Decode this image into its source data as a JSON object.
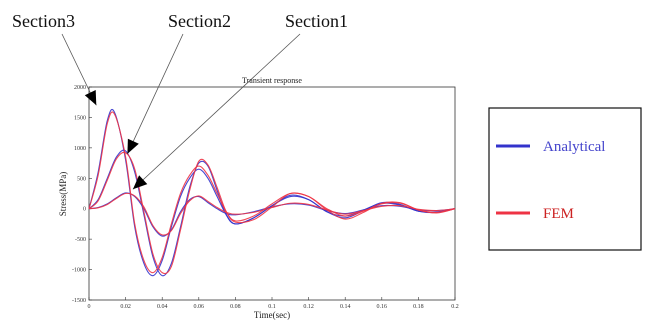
{
  "colors": {
    "analytical": "#3333cc",
    "fem": "#ee3344",
    "axis": "#333333",
    "legend_text_analytical": "#4444cc",
    "legend_text_fem": "#cc2222"
  },
  "annotations": [
    {
      "label": "Section3",
      "target": {
        "x": 0.004,
        "y": 1700
      }
    },
    {
      "label": "Section2",
      "target": {
        "x": 0.021,
        "y": 900
      }
    },
    {
      "label": "Section1",
      "target": {
        "x": 0.024,
        "y": 320
      }
    }
  ],
  "legend": {
    "items": [
      {
        "label": "Analytical",
        "color": "#3333cc"
      },
      {
        "label": "FEM",
        "color": "#ee3344"
      }
    ]
  },
  "chart_data": {
    "type": "line",
    "title": "Transient response",
    "xlabel": "Time(sec)",
    "ylabel": "Stress(MPa)",
    "xlim": [
      0,
      0.2
    ],
    "ylim": [
      -1500,
      2000
    ],
    "xticks": [
      0,
      0.02,
      0.04,
      0.06,
      0.08,
      0.1,
      0.12,
      0.14,
      0.16,
      0.18,
      0.2
    ],
    "yticks": [
      -1500,
      -1000,
      -500,
      0,
      500,
      1000,
      1500,
      2000
    ],
    "xtick_labels": [
      "0",
      "0.02",
      "0.04",
      "0.06",
      "0.08",
      "0.1",
      "0.12",
      "0.14",
      "0.16",
      "0.18",
      "0.2"
    ],
    "ytick_labels": [
      "-1500",
      "-1000",
      "-500",
      "0",
      "500",
      "1000",
      "1500",
      "2000"
    ],
    "series": [
      {
        "group": "Analytical",
        "section": "Section3",
        "x": [
          0,
          0.005,
          0.01,
          0.014,
          0.02,
          0.025,
          0.03,
          0.035,
          0.04,
          0.045,
          0.05,
          0.055,
          0.06,
          0.065,
          0.07,
          0.075,
          0.08,
          0.09,
          0.1,
          0.11,
          0.12,
          0.13,
          0.14,
          0.15,
          0.16,
          0.17,
          0.18,
          0.19,
          0.2
        ],
        "values": [
          0,
          600,
          1450,
          1580,
          800,
          -300,
          -900,
          -1100,
          -850,
          -300,
          200,
          500,
          650,
          500,
          200,
          -100,
          -250,
          -150,
          50,
          200,
          150,
          -50,
          -120,
          -20,
          90,
          60,
          -40,
          -50,
          0
        ]
      },
      {
        "group": "Analytical",
        "section": "Section2",
        "x": [
          0,
          0.005,
          0.01,
          0.015,
          0.02,
          0.025,
          0.03,
          0.035,
          0.04,
          0.045,
          0.05,
          0.055,
          0.06,
          0.065,
          0.07,
          0.075,
          0.08,
          0.09,
          0.1,
          0.11,
          0.12,
          0.13,
          0.14,
          0.15,
          0.16,
          0.17,
          0.18,
          0.19,
          0.2
        ],
        "values": [
          0,
          150,
          500,
          850,
          950,
          600,
          -100,
          -800,
          -1100,
          -900,
          -300,
          350,
          750,
          700,
          300,
          -100,
          -250,
          -150,
          50,
          220,
          150,
          -50,
          -150,
          -30,
          100,
          70,
          -40,
          -60,
          0
        ]
      },
      {
        "group": "Analytical",
        "section": "Section1",
        "x": [
          0,
          0.005,
          0.01,
          0.015,
          0.02,
          0.025,
          0.03,
          0.035,
          0.04,
          0.045,
          0.05,
          0.055,
          0.06,
          0.065,
          0.07,
          0.075,
          0.08,
          0.09,
          0.1,
          0.11,
          0.12,
          0.13,
          0.14,
          0.15,
          0.16,
          0.17,
          0.18,
          0.19,
          0.2
        ],
        "values": [
          0,
          20,
          80,
          180,
          260,
          200,
          0,
          -300,
          -450,
          -350,
          -50,
          150,
          200,
          100,
          0,
          -80,
          -100,
          -50,
          30,
          80,
          60,
          -30,
          -80,
          -20,
          50,
          40,
          -20,
          -30,
          0
        ]
      },
      {
        "group": "FEM",
        "section": "Section3",
        "x": [
          0,
          0.005,
          0.01,
          0.014,
          0.02,
          0.025,
          0.03,
          0.035,
          0.04,
          0.045,
          0.05,
          0.055,
          0.06,
          0.065,
          0.07,
          0.075,
          0.08,
          0.09,
          0.1,
          0.11,
          0.12,
          0.13,
          0.14,
          0.15,
          0.16,
          0.17,
          0.18,
          0.19,
          0.2
        ],
        "values": [
          0,
          550,
          1400,
          1550,
          850,
          -250,
          -850,
          -1050,
          -800,
          -250,
          250,
          550,
          700,
          550,
          250,
          -50,
          -200,
          -120,
          80,
          250,
          200,
          0,
          -120,
          -40,
          80,
          90,
          -20,
          -60,
          0
        ]
      },
      {
        "group": "FEM",
        "section": "Section2",
        "x": [
          0,
          0.005,
          0.01,
          0.015,
          0.02,
          0.025,
          0.03,
          0.035,
          0.04,
          0.045,
          0.05,
          0.055,
          0.06,
          0.065,
          0.07,
          0.075,
          0.08,
          0.09,
          0.1,
          0.11,
          0.12,
          0.13,
          0.14,
          0.15,
          0.16,
          0.17,
          0.18,
          0.19,
          0.2
        ],
        "values": [
          0,
          130,
          470,
          820,
          920,
          650,
          -50,
          -750,
          -1050,
          -950,
          -350,
          300,
          780,
          720,
          350,
          -50,
          -220,
          -180,
          30,
          250,
          200,
          -20,
          -170,
          -60,
          90,
          100,
          -20,
          -70,
          0
        ]
      },
      {
        "group": "FEM",
        "section": "Section1",
        "x": [
          0,
          0.005,
          0.01,
          0.015,
          0.02,
          0.025,
          0.03,
          0.035,
          0.04,
          0.045,
          0.05,
          0.055,
          0.06,
          0.065,
          0.07,
          0.075,
          0.08,
          0.09,
          0.1,
          0.11,
          0.12,
          0.13,
          0.14,
          0.15,
          0.16,
          0.17,
          0.18,
          0.19,
          0.2
        ],
        "values": [
          0,
          15,
          70,
          170,
          250,
          210,
          30,
          -280,
          -430,
          -360,
          -80,
          130,
          210,
          120,
          20,
          -60,
          -90,
          -60,
          20,
          90,
          70,
          -20,
          -90,
          -30,
          40,
          50,
          -10,
          -30,
          0
        ]
      }
    ]
  }
}
